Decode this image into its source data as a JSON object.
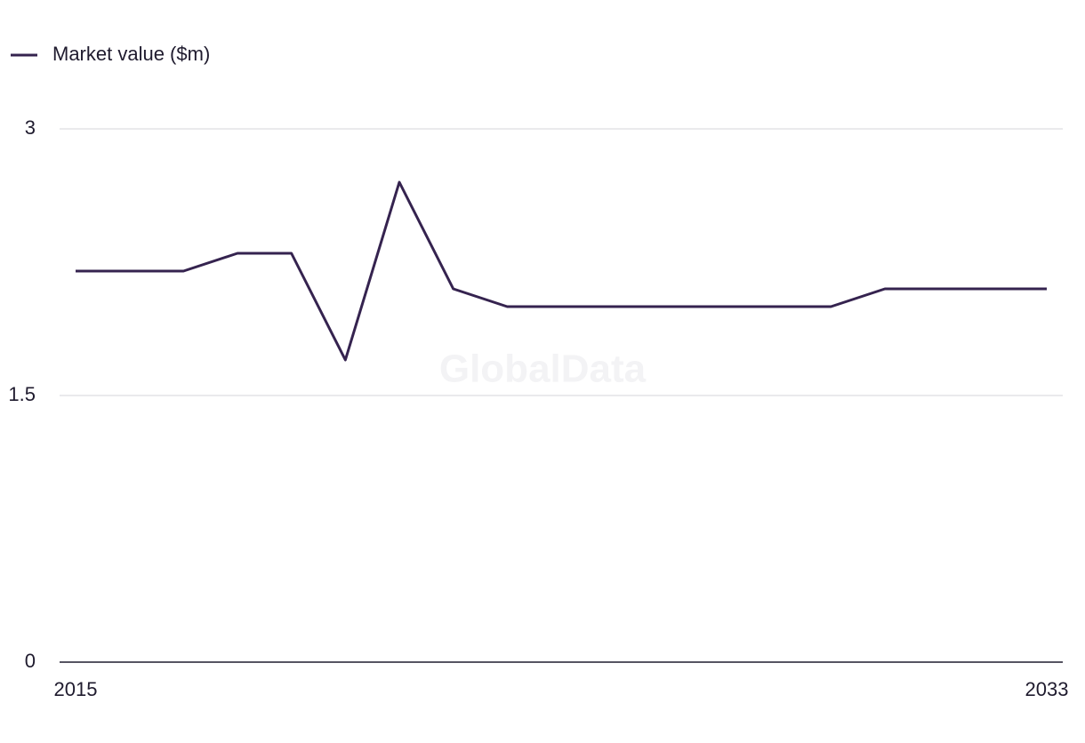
{
  "chart_data": {
    "type": "line",
    "watermark": "GlobalData",
    "x": [
      2015,
      2016,
      2017,
      2018,
      2019,
      2020,
      2021,
      2022,
      2023,
      2024,
      2025,
      2026,
      2027,
      2028,
      2029,
      2030,
      2031,
      2032,
      2033
    ],
    "series": [
      {
        "name": "Market value ($m)",
        "color": "#35234f",
        "values": [
          2.2,
          2.2,
          2.2,
          2.3,
          2.3,
          1.7,
          2.7,
          2.1,
          2.0,
          2.0,
          2.0,
          2.0,
          2.0,
          2.0,
          2.0,
          2.1,
          2.1,
          2.1,
          2.1
        ]
      }
    ],
    "xlim": [
      2015,
      2033
    ],
    "xticks": [
      2015,
      2033
    ],
    "ylim": [
      0,
      3
    ],
    "yticks": [
      0,
      1.5,
      3
    ],
    "grid": true,
    "legend": "top-left"
  }
}
